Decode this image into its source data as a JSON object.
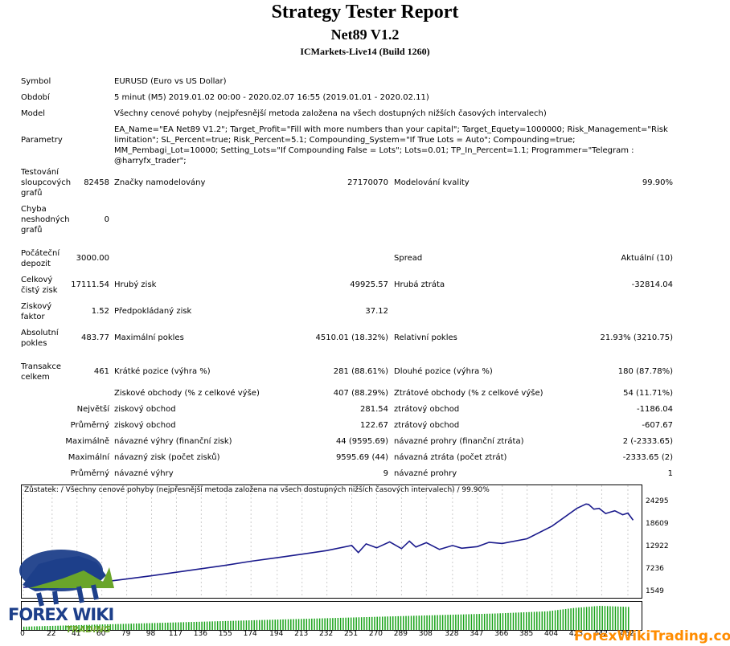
{
  "header": {
    "title": "Strategy Tester Report",
    "ea_name": "Net89 V1.2",
    "server": "ICMarkets-Live14 (Build 1260)"
  },
  "info": {
    "symbol_label": "Symbol",
    "symbol_value": "EURUSD (Euro vs US Dollar)",
    "period_label": "Období",
    "period_value": "5 minut (M5) 2019.01.02 00:00 - 2020.02.07 16:55 (2019.01.01 - 2020.02.11)",
    "model_label": "Model",
    "model_value": "Všechny cenové pohyby (nejpřesnější metoda založena na všech dostupných nižších časových intervalech)",
    "params_label": "Parametry",
    "params_value": "EA_Name=\"EA Net89 V1.2\"; Target_Profit=\"Fill with more numbers than your capital\"; Target_Equety=1000000; Risk_Management=\"Risk limitation\"; SL_Percent=true; Risk_Percent=5.1; Compounding_System=\"If True Lots = Auto\"; Compounding=true; MM_Pembagi_Lot=10000; Setting_Lots=\"If Compounding False = Lots\"; Lots=0.01; TP_In_Percent=1.1; Programmer=\"Telegram : @harryfx_trader\";"
  },
  "stats": {
    "bars_label": "Testování sloupcových grafů",
    "bars_value": "82458",
    "ticks_label": "Značky namodelovány",
    "ticks_value": "27170070",
    "quality_label": "Modelování kvality",
    "quality_value": "99.90%",
    "errors_label": "Chyba neshodných grafů",
    "errors_value": "0",
    "deposit_label": "Počáteční depozit",
    "deposit_value": "3000.00",
    "spread_label": "Spread",
    "spread_value": "Aktuální (10)",
    "net_label": "Celkový čistý zisk",
    "net_value": "17111.54",
    "gross_profit_label": "Hrubý zisk",
    "gross_profit_value": "49925.57",
    "gross_loss_label": "Hrubá ztráta",
    "gross_loss_value": "-32814.04",
    "pf_label": "Ziskový faktor",
    "pf_value": "1.52",
    "expected_label": "Předpokládaný zisk",
    "expected_value": "37.12",
    "abs_dd_label": "Absolutní pokles",
    "abs_dd_value": "483.77",
    "max_dd_label": "Maximální pokles",
    "max_dd_value": "4510.01 (18.32%)",
    "rel_dd_label": "Relativní pokles",
    "rel_dd_value": "21.93% (3210.75)",
    "trades_label": "Transakce celkem",
    "trades_value": "461",
    "short_label": "Krátké pozice (výhra %)",
    "short_value": "281 (88.61%)",
    "long_label": "Dlouhé pozice (výhra %)",
    "long_value": "180 (87.78%)",
    "win_label": "Ziskové obchody (% z celkové výše)",
    "win_value": "407 (88.29%)",
    "loss_label": "Ztrátové obchody (% z celkové výše)",
    "loss_value": "54 (11.71%)",
    "largest_prefix": "Největší",
    "largest_win_label": "ziskový obchod",
    "largest_win_value": "281.54",
    "largest_loss_label": "ztrátový obchod",
    "largest_loss_value": "-1186.04",
    "avg_prefix": "Průměrný",
    "avg_win_label": "ziskový obchod",
    "avg_win_value": "122.67",
    "avg_loss_label": "ztrátový obchod",
    "avg_loss_value": "-607.67",
    "max_cons_prefix": "Maximálně",
    "max_cons_win_label": "návazné výhry (finanční zisk)",
    "max_cons_win_value": "44 (9595.69)",
    "max_cons_loss_label": "návazné prohry (finanční ztráta)",
    "max_cons_loss_value": "2 (-2333.65)",
    "maximal_prefix": "Maximální",
    "maximal_win_label": "návazný zisk (počet zisků)",
    "maximal_win_value": "9595.69 (44)",
    "maximal_loss_label": "návazná ztráta (počet ztrát)",
    "maximal_loss_value": "-2333.65 (2)",
    "avg_cons_prefix": "Průměrný",
    "avg_cons_win_label": "návazné výhry",
    "avg_cons_win_value": "9",
    "avg_cons_loss_label": "návazné prohry",
    "avg_cons_loss_value": "1"
  },
  "chart_data": {
    "type": "line",
    "title": "Zůstatek: / Všechny cenové pohyby (nejpřesnější metoda založena na všech dostupných nižších časových intervalech) / 99.90%",
    "x_ticks": [
      "0",
      "22",
      "41",
      "60",
      "79",
      "98",
      "117",
      "136",
      "155",
      "174",
      "194",
      "213",
      "232",
      "251",
      "270",
      "289",
      "308",
      "328",
      "347",
      "366",
      "385",
      "404",
      "423",
      "442",
      "462"
    ],
    "y_ticks": [
      "24295",
      "18609",
      "12922",
      "7236",
      "1549"
    ],
    "ylim": [
      1549,
      26000
    ],
    "xlim": [
      0,
      470
    ],
    "series": [
      {
        "x": [
          0,
          22,
          41,
          60,
          79,
          98,
          117,
          136,
          155,
          174,
          194,
          213,
          232,
          251,
          256,
          262,
          270,
          280,
          289,
          295,
          300,
          308,
          318,
          328,
          335,
          347,
          356,
          366,
          385,
          404,
          423,
          430,
          432,
          436,
          440,
          445,
          452,
          458,
          462,
          466
        ],
        "values": [
          3000,
          3300,
          3700,
          4300,
          5100,
          5900,
          6800,
          7700,
          8600,
          9600,
          10500,
          11400,
          12300,
          13600,
          11800,
          14000,
          13000,
          14500,
          12800,
          14700,
          13200,
          14300,
          12600,
          13600,
          12900,
          13300,
          14400,
          14100,
          15300,
          18500,
          23000,
          24100,
          24000,
          22800,
          23000,
          21700,
          22400,
          21400,
          21800,
          20000
        ]
      }
    ],
    "volume": {
      "x": [
        0,
        60,
        120,
        180,
        240,
        300,
        360,
        400,
        420,
        440,
        462
      ],
      "values": [
        3,
        5,
        7,
        9,
        11,
        13,
        15,
        17,
        20,
        22,
        21
      ]
    },
    "colors": {
      "line": "#1a1a8c",
      "volume": "#19a319",
      "frame": "#000000"
    }
  },
  "watermark": {
    "brand": "FOREX WIKI",
    "sub": "TRADING",
    "site": "ForexWikiTrading.com"
  }
}
